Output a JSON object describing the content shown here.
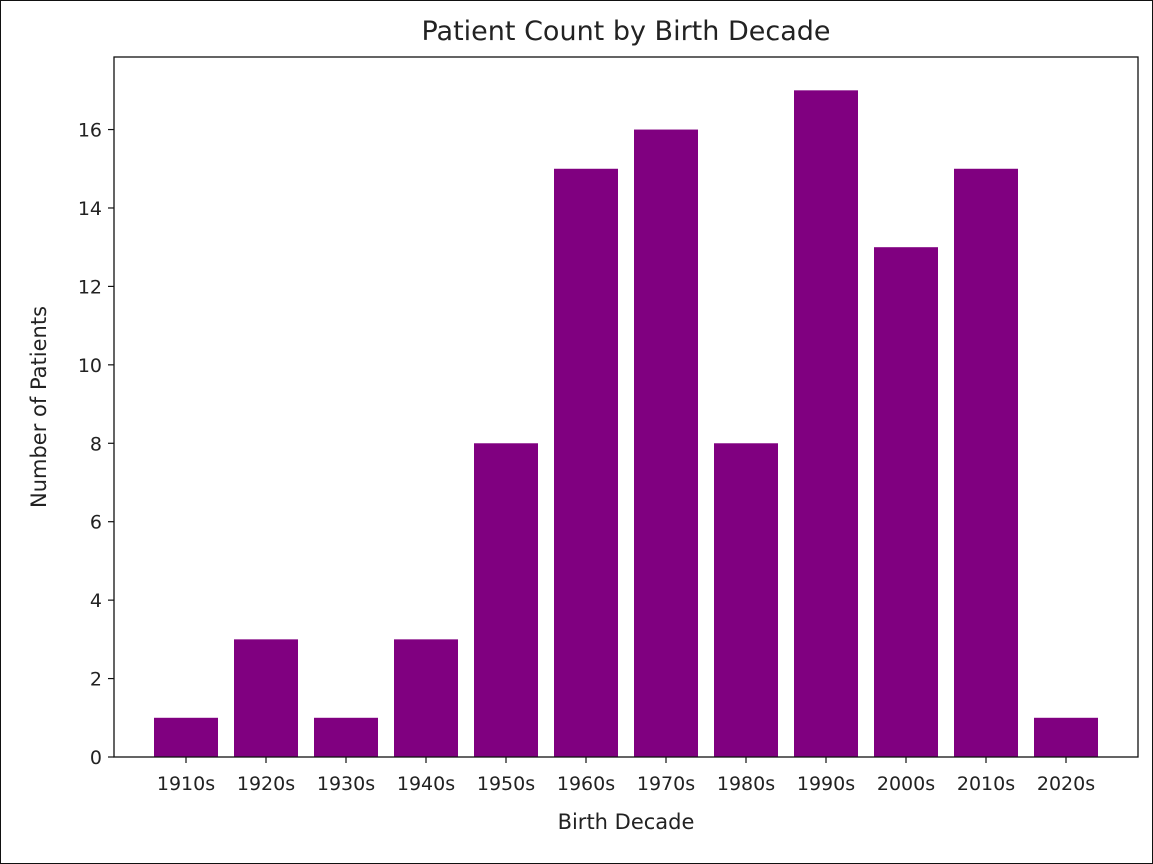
{
  "chart_data": {
    "type": "bar",
    "title": "Patient Count by Birth Decade",
    "xlabel": "Birth Decade",
    "ylabel": "Number of Patients",
    "categories": [
      "1910s",
      "1920s",
      "1930s",
      "1940s",
      "1950s",
      "1960s",
      "1970s",
      "1980s",
      "1990s",
      "2000s",
      "2010s",
      "2020s"
    ],
    "values": [
      1,
      3,
      1,
      3,
      8,
      15,
      16,
      8,
      17,
      13,
      15,
      1
    ],
    "ylim": [
      0,
      17.85
    ],
    "yticks": [
      "0",
      "2",
      "4",
      "6",
      "8",
      "10",
      "12",
      "14",
      "16"
    ],
    "bar_color": "#800080",
    "grid": false,
    "legend": "none"
  }
}
